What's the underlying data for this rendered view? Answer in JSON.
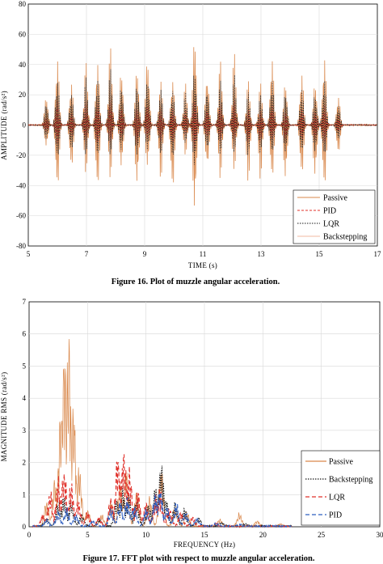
{
  "figure1": {
    "caption": "Figure 16. Plot of muzzle angular acceleration.",
    "chart_data": {
      "type": "line",
      "xlabel": "TIME  (s)",
      "ylabel": "AMPLITUDE  (rad/s²)",
      "xlim": [
        5,
        17
      ],
      "ylim": [
        -80,
        80
      ],
      "xticks": [
        "5",
        "7",
        "9",
        "11",
        "13",
        "15",
        "17"
      ],
      "yticks": [
        "80",
        "60",
        "40",
        "20",
        "0",
        "-20",
        "-40",
        "-60",
        "-80"
      ],
      "grid": true,
      "legend_position": "bottom-right",
      "burst_times": [
        5.62,
        6.0,
        6.48,
        6.98,
        7.38,
        7.82,
        8.2,
        8.74,
        9.1,
        9.55,
        9.96,
        10.4,
        10.72,
        11.15,
        11.6,
        12.08,
        12.56,
        12.98,
        13.38,
        13.84,
        14.4,
        14.86,
        15.18,
        15.66
      ],
      "series": [
        {
          "name": "Passive",
          "color": "#d9874a",
          "dash": "",
          "peaks": [
            20,
            47,
            30,
            42,
            45,
            52,
            38,
            40,
            47,
            30,
            32,
            28,
            63,
            35,
            43,
            48,
            30,
            28,
            48,
            30,
            37,
            30,
            48,
            20
          ],
          "troughs": [
            -15,
            -45,
            -30,
            -32,
            -45,
            -35,
            -30,
            -42,
            -30,
            -38,
            -46,
            -20,
            -60,
            -30,
            -36,
            -30,
            -38,
            -36,
            -38,
            -38,
            -36,
            -36,
            -45,
            -20
          ]
        },
        {
          "name": "PID",
          "color": "#e0302a",
          "dash": "3,2",
          "peaks": [
            6,
            18,
            9,
            16,
            16,
            17,
            13,
            13,
            15,
            11,
            12,
            10,
            19,
            12,
            14,
            16,
            10,
            9,
            14,
            10,
            12,
            10,
            15,
            7
          ],
          "troughs": [
            -5,
            -15,
            -9,
            -11,
            -14,
            -12,
            -10,
            -13,
            -10,
            -12,
            -14,
            -7,
            -18,
            -10,
            -11,
            -10,
            -12,
            -11,
            -12,
            -12,
            -11,
            -11,
            -14,
            -6
          ]
        },
        {
          "name": "LQR",
          "color": "#1a1a1a",
          "dash": "1.5,1.5",
          "peaks": [
            15,
            32,
            22,
            32,
            33,
            38,
            28,
            29,
            33,
            24,
            25,
            22,
            40,
            26,
            30,
            34,
            22,
            20,
            33,
            23,
            26,
            22,
            33,
            14
          ],
          "troughs": [
            -10,
            -24,
            -18,
            -20,
            -22,
            -20,
            -18,
            -22,
            -18,
            -20,
            -24,
            -12,
            -30,
            -18,
            -20,
            -18,
            -20,
            -19,
            -20,
            -20,
            -19,
            -19,
            -22,
            -11
          ]
        },
        {
          "name": "Backstepping",
          "color": "#f0b9a0",
          "dash": "",
          "peaks": [
            8,
            14,
            10,
            13,
            14,
            15,
            12,
            12,
            14,
            10,
            11,
            9,
            16,
            11,
            12,
            13,
            9,
            9,
            13,
            9,
            11,
            9,
            13,
            7
          ],
          "troughs": [
            -6,
            -12,
            -9,
            -10,
            -11,
            -10,
            -9,
            -11,
            -9,
            -10,
            -12,
            -7,
            -14,
            -9,
            -10,
            -9,
            -10,
            -10,
            -10,
            -10,
            -10,
            -10,
            -11,
            -6
          ]
        }
      ]
    }
  },
  "figure2": {
    "caption": "Figure 17. FFT plot with respect to muzzle angular acceleration.",
    "chart_data": {
      "type": "line",
      "xlabel": "FREQUENCY  (Hz)",
      "ylabel": "MAGNITUDE RMS  (rad/s²)",
      "xlim": [
        0,
        30
      ],
      "ylim": [
        0,
        7
      ],
      "xticks": [
        "0",
        "5",
        "10",
        "15",
        "20",
        "25",
        "30"
      ],
      "yticks": [
        "7",
        "6",
        "5",
        "4",
        "3",
        "2",
        "1",
        "0"
      ],
      "grid": true,
      "legend_position": "bottom-right",
      "series": [
        {
          "name": "Passive",
          "color": "#d9874a",
          "dash": "",
          "peaks": [
            [
              1.5,
              0.9
            ],
            [
              2.2,
              1.6
            ],
            [
              2.7,
              4.0
            ],
            [
              3.0,
              6.8
            ],
            [
              3.4,
              6.4
            ],
            [
              3.8,
              4.1
            ],
            [
              4.3,
              2.0
            ],
            [
              5.0,
              0.6
            ],
            [
              6.2,
              0.4
            ],
            [
              7.0,
              0.9
            ],
            [
              7.8,
              1.6
            ],
            [
              8.3,
              2.0
            ],
            [
              9.2,
              1.2
            ],
            [
              10.3,
              1.0
            ],
            [
              11.3,
              2.1
            ],
            [
              12.5,
              0.7
            ],
            [
              13.5,
              0.5
            ],
            [
              16.3,
              0.25
            ],
            [
              18.0,
              0.45
            ],
            [
              19.5,
              0.2
            ],
            [
              21.5,
              0.08
            ]
          ]
        },
        {
          "name": "Backstepping",
          "color": "#1a1a1a",
          "dash": "1.5,1.5",
          "peaks": [
            [
              1.5,
              0.3
            ],
            [
              2.5,
              0.8
            ],
            [
              3.0,
              1.1
            ],
            [
              3.6,
              0.9
            ],
            [
              4.5,
              0.4
            ],
            [
              6.0,
              0.25
            ],
            [
              7.5,
              1.0
            ],
            [
              8.0,
              1.3
            ],
            [
              8.5,
              1.2
            ],
            [
              9.2,
              0.9
            ],
            [
              10.2,
              0.8
            ],
            [
              10.8,
              1.4
            ],
            [
              11.3,
              2.3
            ],
            [
              11.7,
              1.0
            ],
            [
              12.5,
              0.8
            ],
            [
              13.3,
              0.6
            ],
            [
              14.5,
              0.3
            ],
            [
              16.5,
              0.12
            ],
            [
              18.5,
              0.1
            ]
          ]
        },
        {
          "name": "LQR",
          "color": "#e0302a",
          "dash": "5,3",
          "peaks": [
            [
              1.2,
              0.4
            ],
            [
              1.8,
              1.2
            ],
            [
              2.5,
              1.6
            ],
            [
              3.0,
              2.0
            ],
            [
              3.6,
              1.5
            ],
            [
              4.2,
              0.9
            ],
            [
              5.0,
              0.5
            ],
            [
              6.0,
              0.3
            ],
            [
              7.0,
              1.0
            ],
            [
              7.6,
              2.5
            ],
            [
              8.1,
              2.7
            ],
            [
              8.6,
              2.0
            ],
            [
              9.3,
              1.2
            ],
            [
              10.0,
              0.8
            ],
            [
              10.8,
              1.0
            ],
            [
              11.2,
              1.3
            ],
            [
              12.0,
              0.7
            ],
            [
              13.0,
              0.5
            ],
            [
              14.0,
              0.3
            ],
            [
              16.0,
              0.1
            ]
          ]
        },
        {
          "name": "PID",
          "color": "#2f5fc0",
          "dash": "5,3",
          "peaks": [
            [
              1.5,
              0.2
            ],
            [
              2.5,
              0.5
            ],
            [
              3.2,
              0.6
            ],
            [
              4.0,
              0.4
            ],
            [
              5.5,
              0.2
            ],
            [
              7.0,
              0.6
            ],
            [
              7.8,
              0.9
            ],
            [
              8.4,
              1.0
            ],
            [
              9.0,
              0.7
            ],
            [
              10.0,
              0.6
            ],
            [
              10.8,
              1.1
            ],
            [
              11.2,
              1.4
            ],
            [
              11.8,
              0.7
            ],
            [
              12.6,
              0.8
            ],
            [
              13.4,
              0.5
            ],
            [
              14.4,
              0.3
            ],
            [
              16.0,
              0.1
            ],
            [
              18.0,
              0.06
            ]
          ]
        }
      ]
    }
  }
}
